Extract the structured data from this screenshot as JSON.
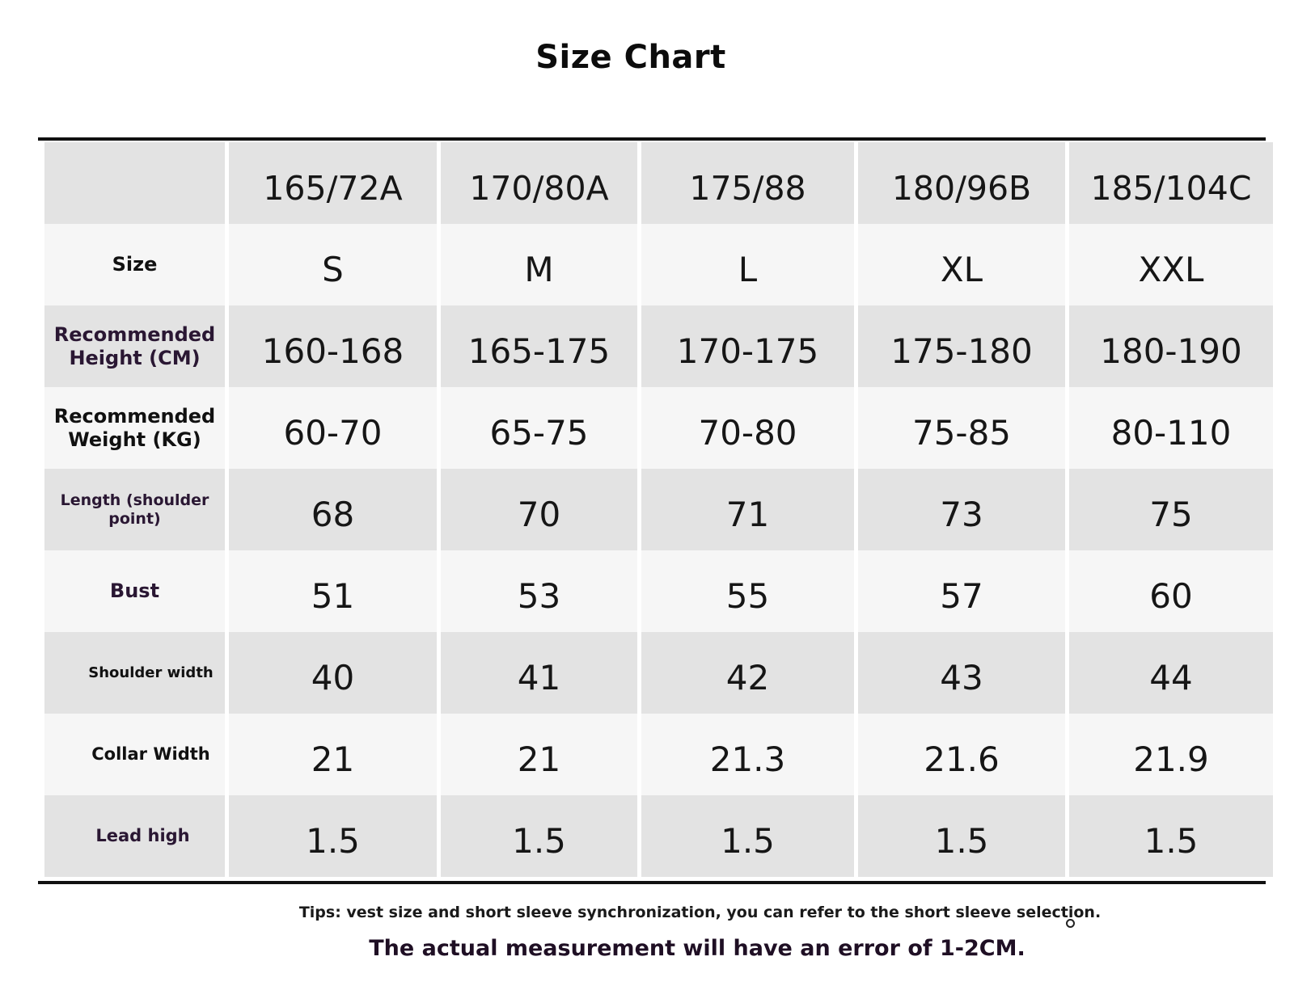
{
  "title": "Size Chart",
  "table": {
    "header": [
      "",
      "165/72A",
      "170/80A",
      "175/88",
      "180/96B",
      "185/104C"
    ],
    "rows": [
      {
        "label": "Size",
        "values": [
          "S",
          "M",
          "L",
          "XL",
          "XXL"
        ]
      },
      {
        "label": "Recommended Height (CM)",
        "values": [
          "160-168",
          "165-175",
          "170-175",
          "175-180",
          "180-190"
        ]
      },
      {
        "label": "Recommended Weight (KG)",
        "values": [
          "60-70",
          "65-75",
          "70-80",
          "75-85",
          "80-110"
        ]
      },
      {
        "label": "Length (shoulder point)",
        "values": [
          "68",
          "70",
          "71",
          "73",
          "75"
        ]
      },
      {
        "label": "Bust",
        "values": [
          "51",
          "53",
          "55",
          "57",
          "60"
        ]
      },
      {
        "label": "Shoulder width",
        "values": [
          "40",
          "41",
          "42",
          "43",
          "44"
        ]
      },
      {
        "label": "Collar Width",
        "values": [
          "21",
          "21",
          "21.3",
          "21.6",
          "21.9"
        ]
      },
      {
        "label": "Lead high",
        "values": [
          "1.5",
          "1.5",
          "1.5",
          "1.5",
          "1.5"
        ]
      }
    ]
  },
  "tips": "Tips: vest size and short sleeve synchronization, you can refer to the short sleeve selection.",
  "note": "The actual measurement will have an error of 1-2CM."
}
